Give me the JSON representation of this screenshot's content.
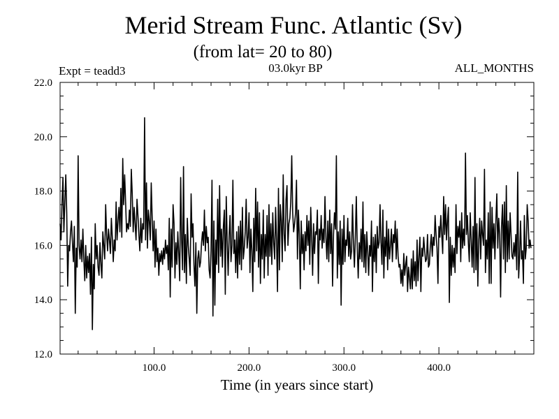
{
  "chart_data": {
    "type": "line",
    "title": "Merid Stream Func. Atlantic (Sv)",
    "subtitle": "(from lat= 20 to 80)",
    "annotation_left": "Expt = teadd3",
    "annotation_center": "03.0kyr BP",
    "annotation_right": "ALL_MONTHS",
    "xlabel": "Time (in years since start)",
    "ylabel": "",
    "xlim": [
      1,
      500
    ],
    "ylim": [
      12.0,
      22.0
    ],
    "x_ticks": [
      100,
      200,
      300,
      400
    ],
    "x_tick_labels": [
      "100.0",
      "200.0",
      "300.0",
      "400.0"
    ],
    "y_ticks": [
      12,
      14,
      16,
      18,
      20,
      22
    ],
    "y_tick_labels": [
      "12.0",
      "14.0",
      "16.0",
      "18.0",
      "20.0",
      "22.0"
    ],
    "series": [
      {
        "name": "Atlantic meridional stream function",
        "color": "#000000",
        "x_start": 1,
        "x_step": 1,
        "values": [
          16.8,
          16.2,
          17.5,
          18.5,
          16.5,
          17.6,
          18.6,
          17.2,
          14.5,
          16.0,
          15.8,
          16.5,
          16.9,
          16.1,
          15.4,
          16.7,
          13.5,
          15.9,
          15.2,
          19.3,
          16.0,
          15.5,
          16.2,
          15.4,
          16.6,
          15.5,
          14.7,
          16.0,
          14.8,
          15.6,
          15.0,
          15.7,
          14.2,
          16.3,
          12.9,
          15.3,
          14.4,
          16.8,
          15.5,
          16.0,
          15.2,
          14.9,
          16.1,
          15.3,
          14.8,
          16.5,
          16.0,
          15.5,
          17.5,
          16.4,
          15.8,
          16.6,
          16.2,
          15.7,
          17.0,
          16.3,
          15.4,
          16.2,
          15.8,
          17.6,
          16.2,
          16.9,
          17.4,
          16.5,
          18.1,
          16.3,
          19.2,
          17.5,
          18.6,
          17.6,
          16.5,
          16.8,
          16.6,
          17.3,
          16.7,
          18.8,
          17.9,
          16.5,
          17.4,
          16.8,
          16.2,
          17.7,
          17.1,
          16.4,
          15.8,
          17.0,
          16.1,
          16.8,
          16.6,
          20.7,
          16.2,
          18.3,
          15.9,
          17.3,
          16.9,
          16.2,
          18.3,
          17.0,
          15.8,
          16.9,
          15.2,
          16.6,
          15.4,
          15.9,
          14.9,
          15.7,
          15.4,
          15.8,
          15.3,
          15.9,
          15.5,
          16.2,
          15.7,
          16.0,
          15.1,
          17.0,
          14.1,
          16.6,
          15.2,
          17.5,
          16.8,
          14.8,
          16.1,
          15.3,
          16.5,
          15.7,
          14.7,
          18.5,
          16.2,
          15.1,
          18.9,
          15.0,
          16.4,
          14.6,
          17.0,
          16.0,
          15.5,
          14.9,
          17.9,
          16.3,
          16.8,
          15.3,
          14.5,
          16.1,
          13.5,
          15.5,
          15.8,
          15.2,
          15.4,
          16.1,
          16.5,
          16.0,
          17.3,
          15.8,
          16.7,
          16.1,
          16.3,
          15.1,
          14.8,
          15.8,
          18.4,
          13.4,
          16.9,
          13.8,
          16.2,
          15.3,
          17.7,
          15.0,
          18.2,
          15.6,
          16.6,
          15.2,
          16.7,
          17.3,
          14.2,
          17.8,
          16.2,
          14.9,
          16.3,
          17.1,
          15.4,
          16.0,
          18.4,
          15.7,
          16.2,
          15.0,
          16.5,
          14.8,
          16.7,
          15.3,
          16.9,
          15.1,
          17.4,
          15.5,
          15.9,
          16.5,
          17.7,
          15.9,
          16.3,
          17.2,
          15.0,
          16.6,
          15.8,
          14.3,
          17.0,
          15.4,
          18.1,
          15.8,
          17.6,
          15.2,
          17.2,
          14.6,
          16.4,
          15.5,
          17.3,
          14.8,
          16.4,
          15.6,
          17.1,
          14.9,
          17.5,
          15.6,
          16.8,
          15.3,
          17.2,
          16.1,
          15.5,
          17.4,
          16.2,
          14.3,
          18.1,
          15.1,
          17.5,
          16.9,
          15.4,
          18.6,
          16.4,
          15.8,
          17.7,
          18.2,
          16.0,
          16.8,
          17.0,
          17.6,
          19.3,
          17.2,
          16.5,
          16.8,
          17.2,
          18.4,
          15.5,
          17.3,
          16.4,
          14.4,
          16.9,
          15.7,
          16.4,
          15.1,
          16.5,
          15.8,
          17.1,
          16.0,
          16.9,
          15.3,
          17.4,
          16.3,
          14.9,
          16.8,
          15.7,
          16.5,
          16.4,
          17.3,
          14.6,
          16.6,
          16.2,
          17.1,
          15.9,
          16.6,
          16.1,
          17.8,
          16.3,
          15.5,
          16.9,
          15.4,
          17.3,
          15.7,
          16.8,
          14.5,
          16.4,
          17.2,
          16.6,
          19.3,
          14.8,
          16.5,
          15.3,
          16.9,
          13.8,
          16.6,
          15.3,
          17.1,
          15.4,
          16.2,
          16.0,
          17.0,
          15.6,
          16.5,
          15.5,
          15.8,
          17.5,
          16.1,
          15.2,
          16.3,
          17.8,
          15.9,
          14.8,
          16.1,
          15.5,
          16.6,
          15.4,
          17.6,
          15.2,
          16.4,
          15.0,
          16.5,
          15.8,
          14.9,
          16.0,
          15.6,
          16.9,
          14.3,
          16.3,
          15.4,
          16.4,
          15.0,
          16.7,
          15.9,
          16.1,
          17.5,
          16.1,
          15.3,
          17.3,
          14.8,
          16.3,
          15.6,
          16.9,
          15.1,
          16.6,
          15.5,
          16.0,
          16.6,
          15.4,
          16.4,
          16.1,
          16.9,
          15.5,
          16.6,
          15.6,
          15.2,
          15.3,
          14.6,
          15.1,
          14.5,
          15.7,
          14.9,
          15.3,
          15.6,
          14.3,
          15.2,
          14.8,
          14.4,
          15.5,
          14.4,
          15.8,
          14.7,
          15.4,
          14.5,
          16.2,
          14.7,
          15.6,
          16.3,
          14.3,
          15.9,
          15.6,
          16.3,
          15.8,
          15.4,
          15.5,
          16.4,
          15.2,
          15.3,
          16.0,
          16.4,
          15.6,
          16.3,
          16.0,
          17.1,
          16.4,
          15.9,
          14.6,
          16.7,
          16.3,
          17.1,
          16.4,
          15.7,
          17.8,
          16.4,
          17.5,
          16.2,
          16.9,
          17.4,
          13.9,
          16.3,
          14.9,
          16.0,
          15.2,
          15.9,
          15.0,
          17.5,
          15.7,
          16.7,
          16.3,
          16.9,
          15.4,
          17.2,
          15.9,
          16.6,
          16.0,
          19.4,
          16.4,
          17.1,
          16.1,
          15.4,
          17.2,
          16.2,
          15.2,
          16.7,
          15.0,
          18.5,
          15.1,
          16.8,
          14.5,
          16.2,
          17.0,
          15.5,
          16.9,
          16.4,
          16.0,
          18.8,
          15.0,
          16.2,
          15.5,
          17.2,
          14.6,
          17.6,
          14.6,
          17.4,
          15.9,
          16.8,
          15.5,
          16.9,
          17.9,
          15.9,
          17.0,
          16.4,
          14.1,
          16.7,
          17.5,
          15.5,
          17.6,
          15.0,
          18.2,
          15.4,
          16.9,
          15.5,
          17.2,
          16.4,
          15.6,
          15.5,
          16.1,
          15.6,
          16.4,
          15.1,
          18.7,
          14.8,
          15.6,
          16.9,
          15.5,
          15.8,
          14.6,
          17.1,
          15.5,
          15.9,
          17.5,
          16.9,
          15.9,
          16.2,
          15.9
        ]
      }
    ]
  }
}
